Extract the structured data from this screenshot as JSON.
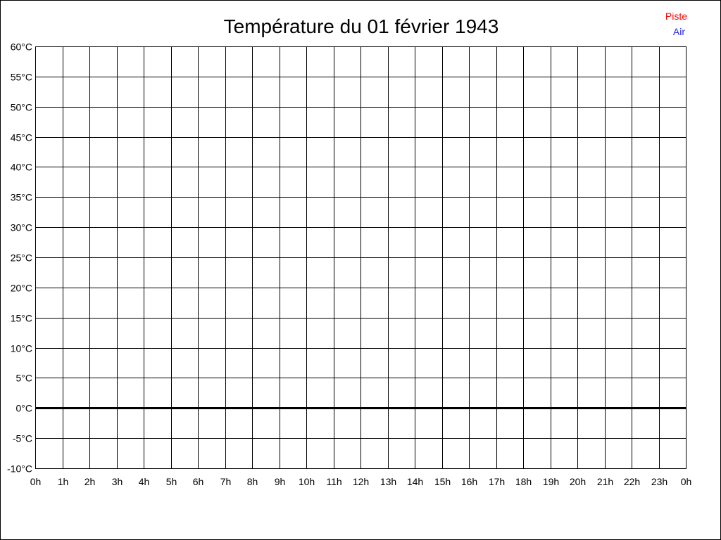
{
  "chart_data": {
    "type": "line",
    "title": "Température du 01 février 1943",
    "xlabel": "",
    "ylabel": "",
    "x_ticks": [
      "0h",
      "1h",
      "2h",
      "3h",
      "4h",
      "5h",
      "6h",
      "7h",
      "8h",
      "9h",
      "10h",
      "11h",
      "12h",
      "13h",
      "14h",
      "15h",
      "16h",
      "17h",
      "18h",
      "19h",
      "20h",
      "21h",
      "22h",
      "23h",
      "0h"
    ],
    "y_ticks": [
      "60°C",
      "55°C",
      "50°C",
      "45°C",
      "40°C",
      "35°C",
      "30°C",
      "25°C",
      "20°C",
      "15°C",
      "10°C",
      "5°C",
      "0°C",
      "-5°C",
      "-10°C"
    ],
    "xlim": [
      0,
      24
    ],
    "ylim": [
      -10,
      60
    ],
    "y_step": 5,
    "grid": true,
    "zero_line_emphasized": true,
    "legend_position": "top-right",
    "series": [
      {
        "name": "Piste",
        "color": "#ff0000",
        "values": []
      },
      {
        "name": "Air",
        "color": "#2020ff",
        "values": []
      }
    ]
  }
}
